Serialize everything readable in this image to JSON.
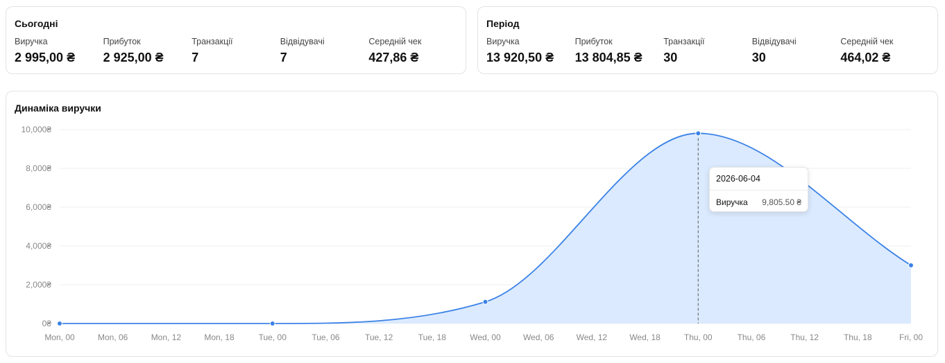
{
  "today": {
    "title": "Сьогодні",
    "metrics": [
      {
        "label": "Виручка",
        "value": "2 995,00 ₴"
      },
      {
        "label": "Прибуток",
        "value": "2 925,00 ₴"
      },
      {
        "label": "Транзакції",
        "value": "7"
      },
      {
        "label": "Відвідувачі",
        "value": "7"
      },
      {
        "label": "Середній чек",
        "value": "427,86 ₴"
      }
    ]
  },
  "period": {
    "title": "Період",
    "metrics": [
      {
        "label": "Виручка",
        "value": "13 920,50 ₴"
      },
      {
        "label": "Прибуток",
        "value": "13 804,85 ₴"
      },
      {
        "label": "Транзакції",
        "value": "30"
      },
      {
        "label": "Відвідувачі",
        "value": "30"
      },
      {
        "label": "Середній чек",
        "value": "464,02 ₴"
      }
    ]
  },
  "revenue_chart": {
    "title": "Динаміка виручки",
    "tooltip": {
      "date": "2026-06-04",
      "series": "Виручка",
      "value": "9,805.50 ₴"
    }
  },
  "colors": {
    "line": "#3b82e6",
    "fill": "#dbeafe",
    "grid": "#efefef"
  },
  "chart_data": {
    "type": "area",
    "title": "Динаміка виручки",
    "x_ticks": [
      "Mon, 00",
      "Mon, 06",
      "Mon, 12",
      "Mon, 18",
      "Tue, 00",
      "Tue, 06",
      "Tue, 12",
      "Tue, 18",
      "Wed, 00",
      "Wed, 06",
      "Wed, 12",
      "Wed, 18",
      "Thu, 00",
      "Thu, 06",
      "Thu, 12",
      "Thu, 18",
      "Fri, 00"
    ],
    "y_ticks": [
      "0₴",
      "2,000₴",
      "4,000₴",
      "6,000₴",
      "8,000₴",
      "10,000₴"
    ],
    "ylim": [
      0,
      10000
    ],
    "grid": true,
    "series": [
      {
        "name": "Виручка",
        "x": [
          "Mon, 00",
          "Tue, 00",
          "Wed, 00",
          "Thu, 00",
          "Fri, 00"
        ],
        "values": [
          0,
          0,
          1115,
          9805.5,
          3000
        ]
      }
    ],
    "highlight": "Thu, 00"
  }
}
